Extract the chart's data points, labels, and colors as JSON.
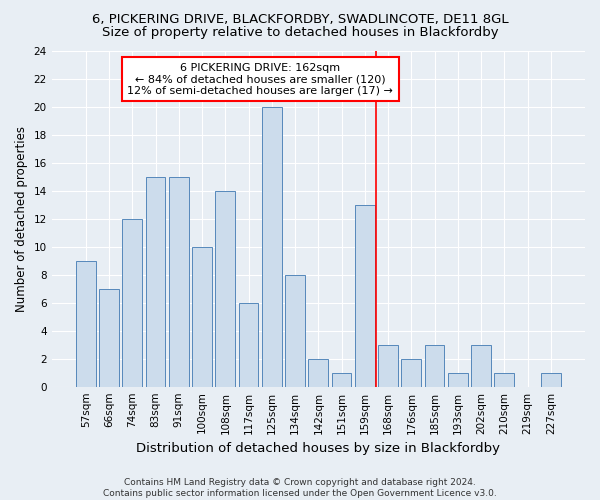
{
  "title1": "6, PICKERING DRIVE, BLACKFORDBY, SWADLINCOTE, DE11 8GL",
  "title2": "Size of property relative to detached houses in Blackfordby",
  "xlabel": "Distribution of detached houses by size in Blackfordby",
  "ylabel": "Number of detached properties",
  "categories": [
    "57sqm",
    "66sqm",
    "74sqm",
    "83sqm",
    "91sqm",
    "100sqm",
    "108sqm",
    "117sqm",
    "125sqm",
    "134sqm",
    "142sqm",
    "151sqm",
    "159sqm",
    "168sqm",
    "176sqm",
    "185sqm",
    "193sqm",
    "202sqm",
    "210sqm",
    "219sqm",
    "227sqm"
  ],
  "values": [
    9,
    7,
    12,
    15,
    15,
    10,
    14,
    6,
    20,
    8,
    2,
    1,
    13,
    3,
    2,
    3,
    1,
    3,
    1,
    0,
    1
  ],
  "bar_color": "#ccdcec",
  "bar_edge_color": "#5588bb",
  "bar_edge_width": 0.7,
  "vline_color": "red",
  "vline_linewidth": 1.2,
  "vline_index": 12.5,
  "annotation_line1": "6 PICKERING DRIVE: 162sqm",
  "annotation_line2": "← 84% of detached houses are smaller (120)",
  "annotation_line3": "12% of semi-detached houses are larger (17) →",
  "annotation_box_color": "white",
  "annotation_box_edge_color": "red",
  "ylim": [
    0,
    24
  ],
  "yticks": [
    0,
    2,
    4,
    6,
    8,
    10,
    12,
    14,
    16,
    18,
    20,
    22,
    24
  ],
  "footer": "Contains HM Land Registry data © Crown copyright and database right 2024.\nContains public sector information licensed under the Open Government Licence v3.0.",
  "background_color": "#e8eef4",
  "plot_bg_color": "#e8eef4",
  "grid_color": "#ffffff",
  "title_fontsize": 9.5,
  "subtitle_fontsize": 9.5,
  "xlabel_fontsize": 9.5,
  "ylabel_fontsize": 8.5,
  "tick_fontsize": 7.5,
  "annotation_fontsize": 8,
  "footer_fontsize": 6.5
}
